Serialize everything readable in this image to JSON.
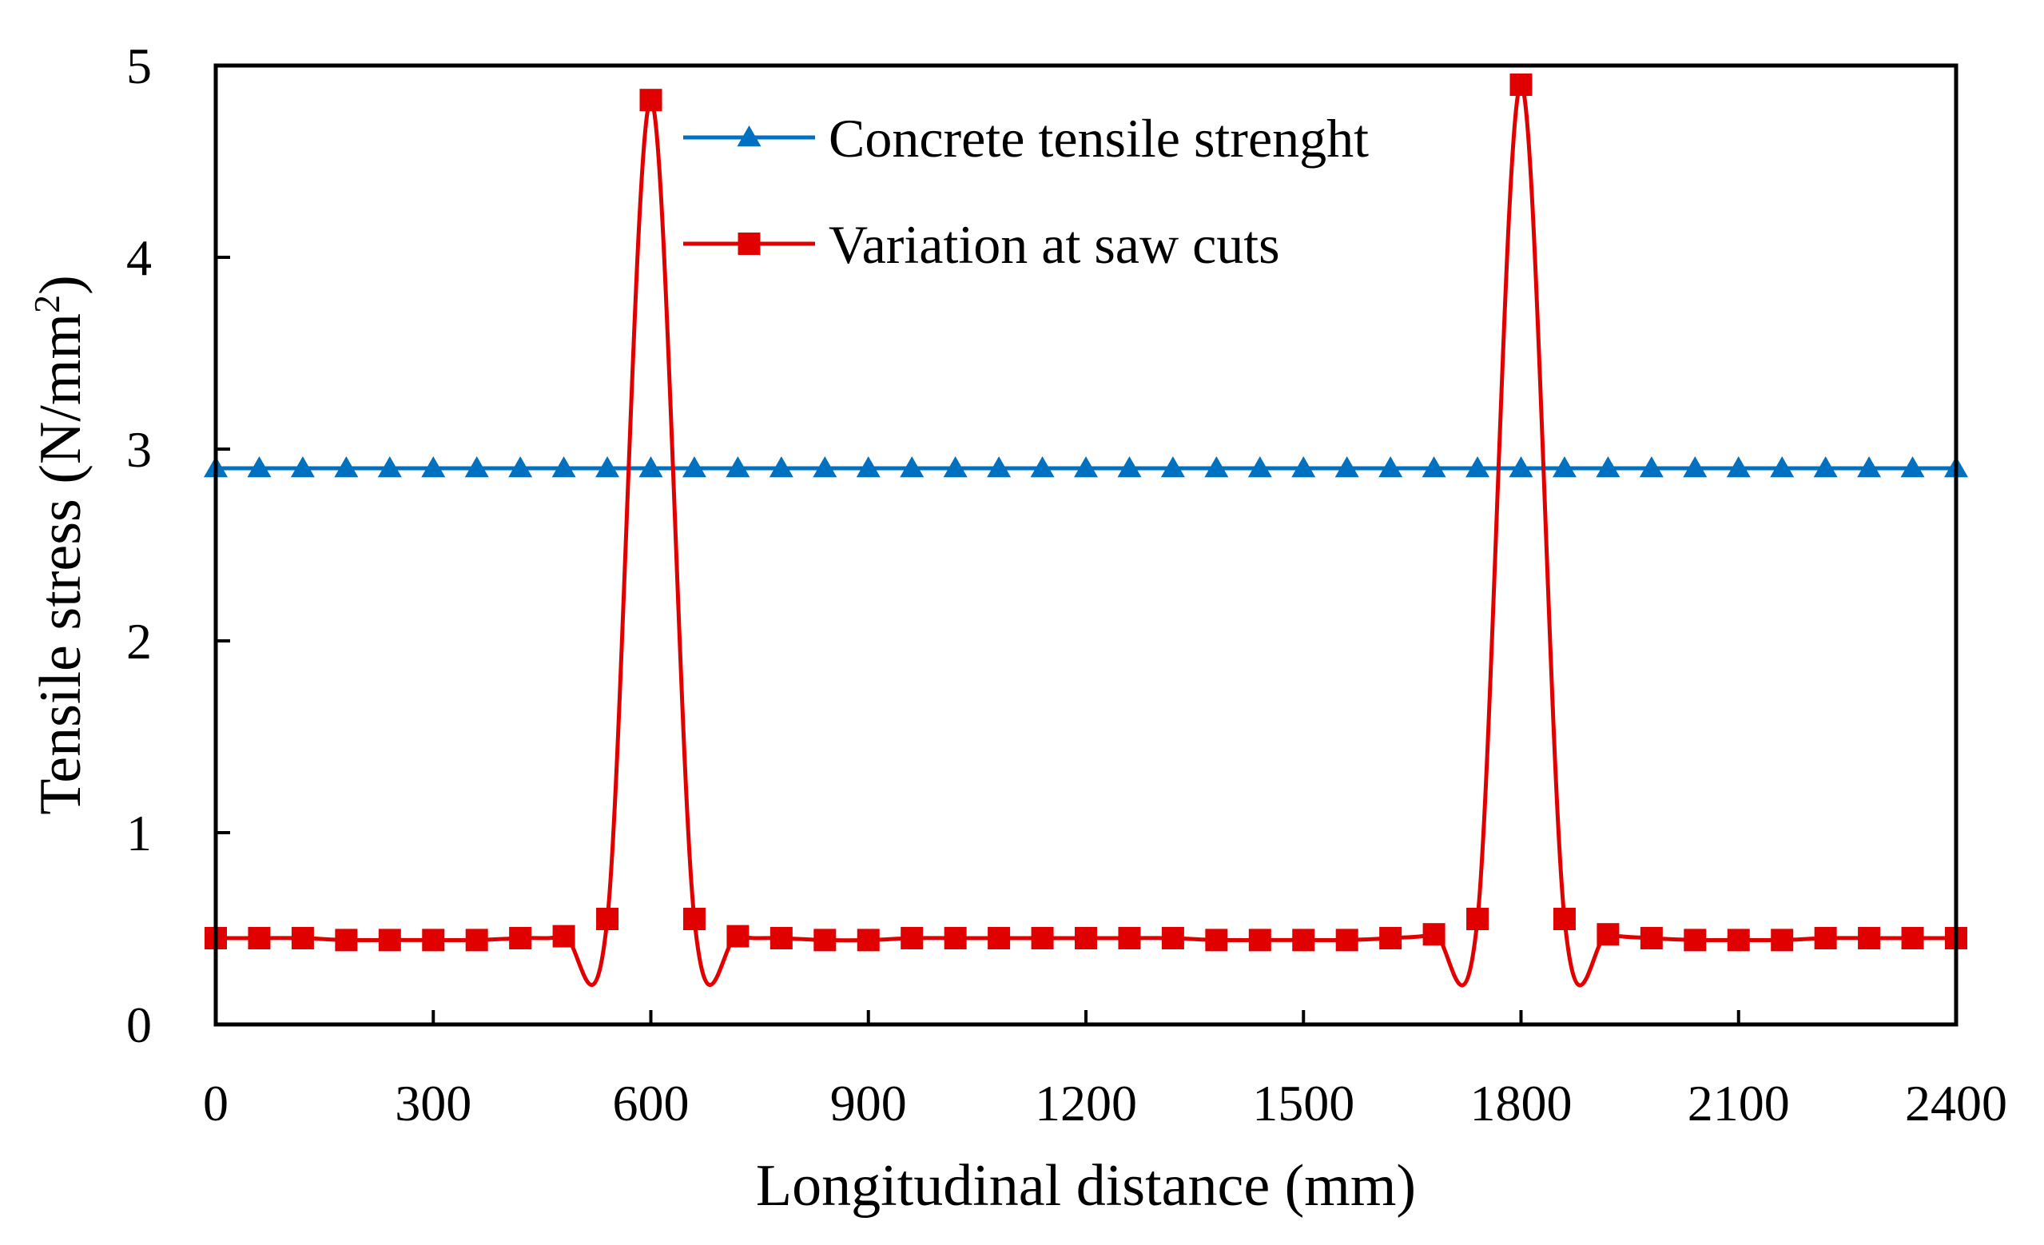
{
  "chart_data": {
    "type": "line",
    "title": "",
    "xlabel": "Longitudinal distance (mm)",
    "ylabel_main": "Tensile stress (N/mm",
    "ylabel_sup": "2",
    "ylabel_close": ")",
    "xlim": [
      0,
      2400
    ],
    "ylim": [
      0,
      5
    ],
    "xticks": [
      0,
      300,
      600,
      900,
      1200,
      1500,
      1800,
      2100,
      2400
    ],
    "xtick_labels": [
      "0",
      "300",
      "600",
      "900",
      "1200",
      "1500",
      "1800",
      "2100",
      "2400"
    ],
    "yticks": [
      0,
      1,
      2,
      3,
      4,
      5
    ],
    "ytick_labels": [
      "0",
      "1",
      "2",
      "3",
      "4",
      "5"
    ],
    "grid": false,
    "legend_position": "top-center",
    "series": [
      {
        "name": "Concrete tensile strenght",
        "color": "#0070C0",
        "marker": "triangle",
        "x": [
          0,
          60,
          120,
          180,
          240,
          300,
          360,
          420,
          480,
          540,
          600,
          660,
          720,
          780,
          840,
          900,
          960,
          1020,
          1080,
          1140,
          1200,
          1260,
          1320,
          1380,
          1440,
          1500,
          1560,
          1620,
          1680,
          1740,
          1800,
          1860,
          1920,
          1980,
          2040,
          2100,
          2160,
          2220,
          2280,
          2340,
          2400
        ],
        "values": [
          2.9,
          2.9,
          2.9,
          2.9,
          2.9,
          2.9,
          2.9,
          2.9,
          2.9,
          2.9,
          2.9,
          2.9,
          2.9,
          2.9,
          2.9,
          2.9,
          2.9,
          2.9,
          2.9,
          2.9,
          2.9,
          2.9,
          2.9,
          2.9,
          2.9,
          2.9,
          2.9,
          2.9,
          2.9,
          2.9,
          2.9,
          2.9,
          2.9,
          2.9,
          2.9,
          2.9,
          2.9,
          2.9,
          2.9,
          2.9,
          2.9
        ]
      },
      {
        "name": "Variation at saw cuts",
        "color": "#E00000",
        "marker": "square",
        "x": [
          0,
          60,
          120,
          180,
          240,
          300,
          360,
          420,
          480,
          540,
          600,
          660,
          720,
          780,
          840,
          900,
          960,
          1020,
          1080,
          1140,
          1200,
          1260,
          1320,
          1380,
          1440,
          1500,
          1560,
          1620,
          1680,
          1740,
          1800,
          1860,
          1920,
          1980,
          2040,
          2100,
          2160,
          2220,
          2280,
          2340,
          2400
        ],
        "values": [
          0.45,
          0.45,
          0.45,
          0.44,
          0.44,
          0.44,
          0.44,
          0.45,
          0.46,
          0.55,
          4.82,
          0.55,
          0.46,
          0.45,
          0.44,
          0.44,
          0.45,
          0.45,
          0.45,
          0.45,
          0.45,
          0.45,
          0.45,
          0.44,
          0.44,
          0.44,
          0.44,
          0.45,
          0.47,
          0.55,
          4.9,
          0.55,
          0.47,
          0.45,
          0.44,
          0.44,
          0.44,
          0.45,
          0.45,
          0.45,
          0.45
        ]
      }
    ]
  }
}
